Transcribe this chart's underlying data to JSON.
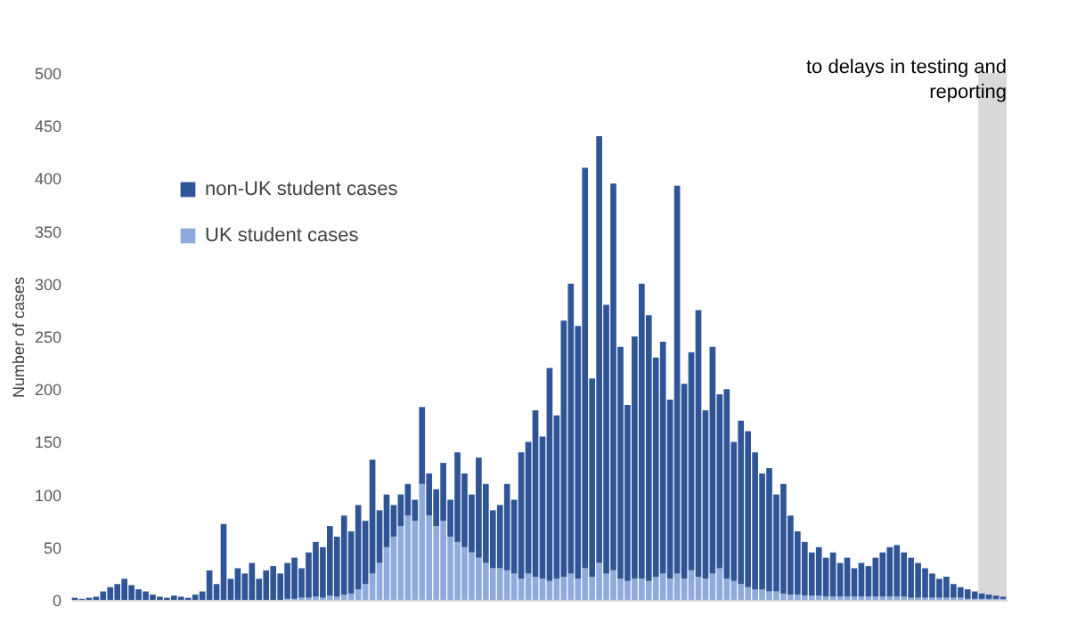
{
  "chart_data": {
    "type": "bar",
    "stacked": true,
    "ylabel": "Number of cases",
    "ylim": [
      0,
      500
    ],
    "yticks": [
      0,
      50,
      100,
      150,
      200,
      250,
      300,
      350,
      400,
      450,
      500
    ],
    "grid": false,
    "legend": "top left",
    "categories": [
      null,
      null,
      null,
      null,
      null,
      null,
      null,
      null,
      null,
      null,
      null,
      null,
      null,
      null,
      null,
      null,
      null,
      null,
      null,
      null,
      null,
      null,
      null,
      null,
      null,
      null,
      null,
      null,
      null,
      null,
      null,
      null,
      null,
      null,
      null,
      null,
      null,
      null,
      null,
      null,
      null,
      null,
      null,
      null,
      null,
      null,
      null,
      null,
      null,
      null,
      null,
      null,
      null,
      null,
      null,
      null,
      null,
      null,
      null,
      null,
      null,
      null,
      null,
      null,
      null,
      null,
      null,
      null,
      null,
      null,
      null,
      null,
      null,
      null,
      null,
      null,
      null,
      null,
      null,
      null,
      null,
      null,
      null,
      null,
      null,
      null,
      null,
      null,
      null,
      null,
      null,
      null,
      null,
      null,
      null,
      null,
      null,
      null,
      null,
      null,
      null,
      null,
      null,
      null,
      null,
      null,
      null,
      null,
      null,
      null,
      null,
      null,
      null,
      null,
      null,
      null,
      null,
      null,
      null,
      null,
      null,
      null,
      null,
      null,
      null,
      null,
      null,
      null,
      null,
      null,
      null,
      null
    ],
    "series": [
      {
        "name": "UK student cases",
        "color": "#8faadc",
        "values": [
          0,
          0,
          0,
          0,
          0,
          0,
          0,
          0,
          0,
          0,
          0,
          0,
          0,
          0,
          0,
          0,
          0,
          0,
          0,
          0,
          0,
          0,
          0,
          0,
          0,
          0,
          0,
          0,
          0,
          0,
          1,
          1,
          2,
          2,
          3,
          2,
          4,
          3,
          5,
          6,
          10,
          15,
          25,
          35,
          50,
          60,
          70,
          80,
          75,
          110,
          80,
          70,
          75,
          60,
          55,
          50,
          45,
          40,
          35,
          30,
          30,
          28,
          25,
          20,
          25,
          22,
          20,
          18,
          20,
          22,
          25,
          20,
          30,
          22,
          35,
          25,
          28,
          20,
          18,
          20,
          20,
          18,
          22,
          25,
          20,
          25,
          20,
          28,
          22,
          20,
          25,
          30,
          20,
          18,
          15,
          12,
          10,
          10,
          8,
          8,
          6,
          5,
          5,
          4,
          4,
          4,
          3,
          3,
          3,
          3,
          3,
          3,
          3,
          3,
          3,
          3,
          3,
          3,
          2,
          2,
          2,
          2,
          2,
          2,
          2,
          2,
          1,
          1,
          1,
          1,
          1,
          1
        ]
      },
      {
        "name": "non-UK student cases",
        "color": "#2f5597",
        "values": [
          2,
          1,
          2,
          3,
          8,
          12,
          15,
          20,
          14,
          10,
          8,
          5,
          3,
          2,
          4,
          3,
          2,
          5,
          8,
          28,
          15,
          72,
          20,
          30,
          25,
          35,
          20,
          28,
          32,
          25,
          34,
          39,
          28,
          43,
          52,
          48,
          66,
          57,
          75,
          59,
          80,
          60,
          108,
          50,
          50,
          30,
          30,
          30,
          20,
          73,
          40,
          35,
          55,
          35,
          85,
          70,
          55,
          95,
          75,
          55,
          60,
          82,
          70,
          120,
          125,
          158,
          135,
          202,
          155,
          243,
          275,
          240,
          380,
          188,
          405,
          255,
          367,
          220,
          167,
          230,
          280,
          252,
          208,
          220,
          170,
          368,
          185,
          207,
          253,
          160,
          215,
          165,
          180,
          132,
          155,
          148,
          130,
          110,
          117,
          92,
          104,
          75,
          60,
          51,
          41,
          46,
          37,
          42,
          32,
          37,
          27,
          32,
          29,
          37,
          42,
          47,
          49,
          42,
          38,
          33,
          28,
          23,
          18,
          20,
          13,
          10,
          9,
          7,
          5,
          4,
          3,
          2
        ]
      }
    ],
    "annotations": [
      "to delays in testing and\nreporting"
    ]
  }
}
